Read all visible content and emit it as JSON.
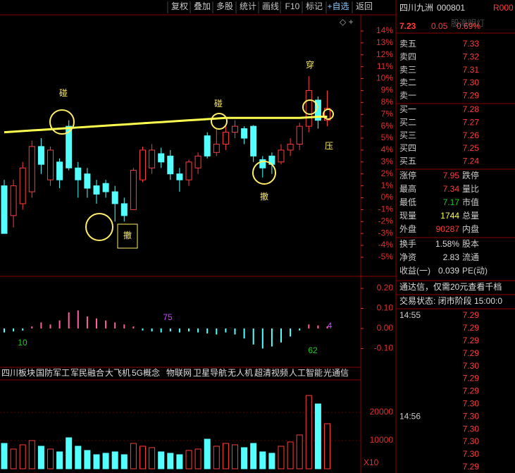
{
  "toolbar": [
    "复权",
    "叠加",
    "多股",
    "统计",
    "画线",
    "F10",
    "标记",
    "+自选",
    "返回"
  ],
  "kline": {
    "type": "candlestick",
    "ylim": [
      -6.6,
      15.3
    ],
    "yticks": [
      {
        "value": 14,
        "label": "14%"
      },
      {
        "value": 13,
        "label": "13%"
      },
      {
        "value": 12,
        "label": "12%"
      },
      {
        "value": 11,
        "label": "11%"
      },
      {
        "value": 10,
        "label": "10%"
      },
      {
        "value": 9,
        "label": "9%"
      },
      {
        "value": 8,
        "label": "8%"
      },
      {
        "value": 7,
        "label": "7%"
      },
      {
        "value": 6,
        "label": "6%"
      },
      {
        "value": 5,
        "label": "5%"
      },
      {
        "value": 4,
        "label": "4%"
      },
      {
        "value": 3,
        "label": "3%"
      },
      {
        "value": 2,
        "label": "2%"
      },
      {
        "value": 1,
        "label": "1%"
      },
      {
        "value": 0,
        "label": "0%"
      },
      {
        "value": -1,
        "label": "-1%"
      },
      {
        "value": -2,
        "label": "-2%"
      },
      {
        "value": -3,
        "label": "-3%"
      },
      {
        "value": -4,
        "label": "-4%"
      },
      {
        "value": -5,
        "label": "-5%"
      }
    ],
    "up_color": "#ff3c3c",
    "down_color": "#54ffff",
    "candles": [
      {
        "o": 1,
        "c": -3,
        "h": 1.5,
        "l": -3
      },
      {
        "o": -1.5,
        "c": 1,
        "h": 1.5,
        "l": -2.5
      },
      {
        "o": -0.5,
        "c": 2.5,
        "h": 3,
        "l": -1
      },
      {
        "o": 0.5,
        "c": 4.3,
        "h": 4.8,
        "l": 0
      },
      {
        "o": 4.3,
        "c": 2.8,
        "h": 5,
        "l": 2
      },
      {
        "o": 1.5,
        "c": 4,
        "h": 4.3,
        "l": 1
      },
      {
        "o": 3,
        "c": 1.5,
        "h": 3.3,
        "l": 0.8
      },
      {
        "o": 6,
        "c": 2.5,
        "h": 6.5,
        "l": 2.3
      },
      {
        "o": 2.5,
        "c": 1.5,
        "h": 3,
        "l": 0
      },
      {
        "o": 2,
        "c": 0.8,
        "h": 2.5,
        "l": 0
      },
      {
        "o": 1,
        "c": 0.3,
        "h": 1.5,
        "l": -0.5
      },
      {
        "o": 1.2,
        "c": 0.5,
        "h": 1.5,
        "l": 0
      },
      {
        "o": 0.5,
        "c": -0.5,
        "h": 1,
        "l": -2
      },
      {
        "o": -0.5,
        "c": -1.5,
        "h": 0,
        "l": -2
      },
      {
        "o": -1,
        "c": 2.3,
        "h": 2.5,
        "l": -1
      },
      {
        "o": 1.5,
        "c": 4,
        "h": 4.3,
        "l": 1.3
      },
      {
        "o": 2.5,
        "c": 4,
        "h": 4.5,
        "l": 2
      },
      {
        "o": 3.7,
        "c": 3,
        "h": 4.2,
        "l": 2.5
      },
      {
        "o": 3.5,
        "c": 2,
        "h": 4,
        "l": 1.5
      },
      {
        "o": 2,
        "c": 1.5,
        "h": 2.5,
        "l": 0.5
      },
      {
        "o": 1.5,
        "c": 3,
        "h": 3.2,
        "l": 1
      },
      {
        "o": 2.5,
        "c": 3.5,
        "h": 3.8,
        "l": 2
      },
      {
        "o": 5.2,
        "c": 3.5,
        "h": 5.5,
        "l": 3.3
      },
      {
        "o": 3.8,
        "c": 4.5,
        "h": 5.8,
        "l": 3.5
      },
      {
        "o": 4.5,
        "c": 5.5,
        "h": 6,
        "l": 4
      },
      {
        "o": 5.5,
        "c": 6,
        "h": 6.5,
        "l": 5
      },
      {
        "o": 5.8,
        "c": 5,
        "h": 6,
        "l": 4.5
      },
      {
        "o": 6,
        "c": 3.5,
        "h": 6.1,
        "l": 3
      },
      {
        "o": 3.2,
        "c": 2.5,
        "h": 3.5,
        "l": 1.7
      },
      {
        "o": 3.5,
        "c": 2.8,
        "h": 3.8,
        "l": 2
      },
      {
        "o": 3,
        "c": 4,
        "h": 4.5,
        "l": 2.8
      },
      {
        "o": 4,
        "c": 4.5,
        "h": 5,
        "l": 3.5
      },
      {
        "o": 4.5,
        "c": 6,
        "h": 6.3,
        "l": 4
      },
      {
        "o": 6,
        "c": 9,
        "h": 10.2,
        "l": 5.5
      },
      {
        "o": 8.2,
        "c": 6.5,
        "h": 8.5,
        "l": 5.8
      },
      {
        "o": 6.5,
        "c": 7.5,
        "h": 9,
        "l": 6
      }
    ],
    "ma": {
      "color": "#ffff50",
      "values": [
        5.5,
        5.55,
        5.6,
        5.65,
        5.7,
        5.75,
        5.8,
        5.85,
        5.9,
        5.95,
        6.0,
        6.05,
        6.1,
        6.15,
        6.2,
        6.25,
        6.3,
        6.35,
        6.4,
        6.45,
        6.5,
        6.55,
        6.6,
        6.65,
        6.7,
        6.7,
        6.7,
        6.7,
        6.7,
        6.7,
        6.7,
        6.7,
        6.7,
        6.75,
        6.8,
        6.8
      ]
    },
    "annotations": [
      "碰",
      "碰",
      "穿",
      "压",
      "撤",
      "撤"
    ]
  },
  "macd": {
    "type": "bar",
    "ylim": [
      -0.19,
      0.26
    ],
    "yticks": [
      {
        "value": 0.2,
        "label": "0.20"
      },
      {
        "value": 0.1,
        "label": "0.10"
      },
      {
        "value": 0,
        "label": "0.00"
      },
      {
        "value": -0.1,
        "label": "-0.10"
      }
    ],
    "values": [
      -0.02,
      -0.015,
      -0.01,
      0.01,
      0.03,
      0.02,
      0.04,
      0.08,
      0.09,
      0.06,
      0.05,
      0.04,
      0.03,
      0.02,
      0.01,
      -0.01,
      -0.015,
      -0.02,
      -0.015,
      -0.02,
      -0.015,
      -0.02,
      -0.025,
      -0.03,
      -0.02,
      -0.03,
      -0.05,
      -0.08,
      -0.1,
      -0.09,
      -0.07,
      -0.04,
      -0.01,
      0.02,
      0.015,
      0.01
    ],
    "labels": [
      10,
      75,
      62,
      4
    ]
  },
  "concepts": [
    "四川板块",
    "国防军工",
    "军民融合",
    "大飞机",
    "5G概念",
    "物联网",
    "卫星导航",
    "无人机",
    "超清视频",
    "人工智能",
    "光通信"
  ],
  "volume": {
    "type": "bar",
    "ylim": [
      0,
      31250
    ],
    "yticks": [
      20000,
      10000
    ],
    "unit": "X10",
    "values": [
      9000,
      7000,
      8500,
      10000,
      8000,
      7000,
      6000,
      11000,
      8000,
      6500,
      5000,
      5500,
      6000,
      5000,
      9000,
      8000,
      7500,
      6000,
      5500,
      5000,
      6500,
      7000,
      10500,
      8000,
      9000,
      8500,
      7500,
      9000,
      6000,
      5500,
      8000,
      9500,
      12000,
      26000,
      23000,
      16000
    ]
  },
  "quote": {
    "name": "四川九洲",
    "code": "000801",
    "tag": "R000",
    "price": "7.23",
    "change": "0.05",
    "pct": "0.69%",
    "watermark": "股海明灯",
    "asks": [
      [
        "卖五",
        "7.33"
      ],
      [
        "卖四",
        "7.32"
      ],
      [
        "卖三",
        "7.31"
      ],
      [
        "卖二",
        "7.30"
      ],
      [
        "卖一",
        "7.29"
      ]
    ],
    "bids": [
      [
        "买一",
        "7.28"
      ],
      [
        "买二",
        "7.27"
      ],
      [
        "买三",
        "7.26"
      ],
      [
        "买四",
        "7.25"
      ],
      [
        "买五",
        "7.24"
      ]
    ],
    "stats": [
      [
        "涨停",
        "7.95",
        "跌停"
      ],
      [
        "最高",
        "7.34",
        "量比"
      ],
      [
        "最低",
        "7.17",
        "市值"
      ],
      [
        "现量",
        "1744",
        "总量"
      ],
      [
        "外盘",
        "90287",
        "内盘"
      ]
    ],
    "stats2": [
      [
        "换手",
        "1.58%",
        "股本"
      ],
      [
        "净资",
        "2.83",
        "流通"
      ],
      [
        "收益(一)",
        "0.039",
        "PE(动)"
      ]
    ],
    "ad": "通达信，仅需20元查看千档",
    "status": "交易状态: 闭市阶段 15:00:0",
    "ticks": [
      {
        "time": "14:55",
        "price": "7.29"
      },
      {
        "price": "7.29"
      },
      {
        "price": "7.29"
      },
      {
        "price": "7.29"
      },
      {
        "price": "7.30"
      },
      {
        "price": "7.29"
      },
      {
        "price": "7.29"
      },
      {
        "price": "7.30"
      },
      {
        "time": "14:56",
        "price": "7.30"
      },
      {
        "price": "7.30"
      },
      {
        "price": "7.30"
      },
      {
        "price": "7.30"
      },
      {
        "price": "7.29"
      }
    ]
  }
}
